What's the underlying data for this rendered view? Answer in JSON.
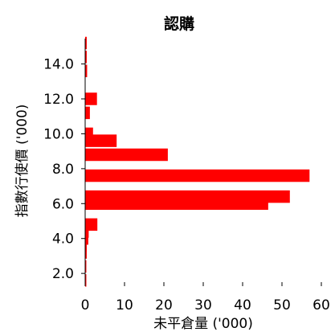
{
  "chart_data": {
    "type": "bar",
    "orientation": "horizontal",
    "title": "認購",
    "xlabel": "未平倉量 ('000)",
    "ylabel": "指數行使價 ('000)",
    "xlim": [
      0,
      60
    ],
    "ylim": [
      1.5,
      15.5
    ],
    "x_ticks": [
      0,
      10,
      20,
      30,
      40,
      50,
      60
    ],
    "y_ticks": [
      2.0,
      4.0,
      6.0,
      8.0,
      10.0,
      12.0,
      14.0
    ],
    "x_tick_labels": [
      "0",
      "10",
      "20",
      "30",
      "40",
      "50",
      "60"
    ],
    "y_tick_labels": [
      "2.0",
      "4.0",
      "6.0",
      "8.0",
      "10.0",
      "12.0",
      "14.0"
    ],
    "bar_color": "#ff0000",
    "bars": [
      {
        "strike": 1.6,
        "value": 0.3
      },
      {
        "strike": 2.4,
        "value": 0.3
      },
      {
        "strike": 3.2,
        "value": 0.4
      },
      {
        "strike": 3.6,
        "value": 0.4
      },
      {
        "strike": 4.0,
        "value": 0.8
      },
      {
        "strike": 4.4,
        "value": 0.9
      },
      {
        "strike": 4.8,
        "value": 3.1
      },
      {
        "strike": 6.0,
        "value": 46.5
      },
      {
        "strike": 6.4,
        "value": 52.0
      },
      {
        "strike": 7.6,
        "value": 57.0
      },
      {
        "strike": 8.8,
        "value": 21.0
      },
      {
        "strike": 9.6,
        "value": 8.0
      },
      {
        "strike": 10.0,
        "value": 2.0
      },
      {
        "strike": 11.2,
        "value": 1.2
      },
      {
        "strike": 12.0,
        "value": 3.0
      },
      {
        "strike": 13.6,
        "value": 0.5
      },
      {
        "strike": 14.4,
        "value": 0.4
      },
      {
        "strike": 15.2,
        "value": 0.4
      }
    ]
  }
}
